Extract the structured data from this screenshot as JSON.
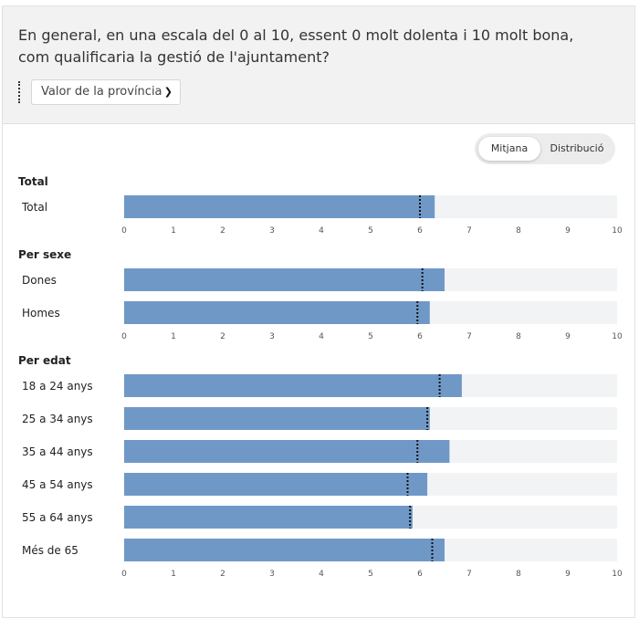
{
  "question": "En general, en una escala del 0 al 10, essent 0 molt dolenta i 10 molt bona, com qualificaria la gestió de l'ajuntament?",
  "selector": {
    "value": "Valor de la província"
  },
  "toggle": {
    "options": [
      "Mitjana",
      "Distribució"
    ],
    "active": "Mitjana"
  },
  "colors": {
    "bar": "#6f98c7",
    "track": "#f2f3f5",
    "marker": "#111111"
  },
  "chart_data": {
    "type": "bar",
    "orientation": "horizontal",
    "xlim": [
      0,
      10
    ],
    "ticks": [
      0,
      1,
      2,
      3,
      4,
      5,
      6,
      7,
      8,
      9,
      10
    ],
    "reference_marker": "dotted vertical line = province value",
    "groups": [
      {
        "title": "Total",
        "categories": [
          "Total"
        ],
        "values": [
          6.3
        ],
        "reference": [
          6.0
        ]
      },
      {
        "title": "Per sexe",
        "categories": [
          "Dones",
          "Homes"
        ],
        "values": [
          6.5,
          6.2
        ],
        "reference": [
          6.05,
          5.95
        ]
      },
      {
        "title": "Per edat",
        "categories": [
          "18 a 24 anys",
          "25 a 34 anys",
          "35 a 44 anys",
          "45 a 54 anys",
          "55 a 64 anys",
          "Més de 65"
        ],
        "values": [
          6.85,
          6.2,
          6.6,
          6.15,
          5.85,
          6.5
        ],
        "reference": [
          6.4,
          6.15,
          5.95,
          5.75,
          5.8,
          6.25
        ]
      }
    ]
  }
}
